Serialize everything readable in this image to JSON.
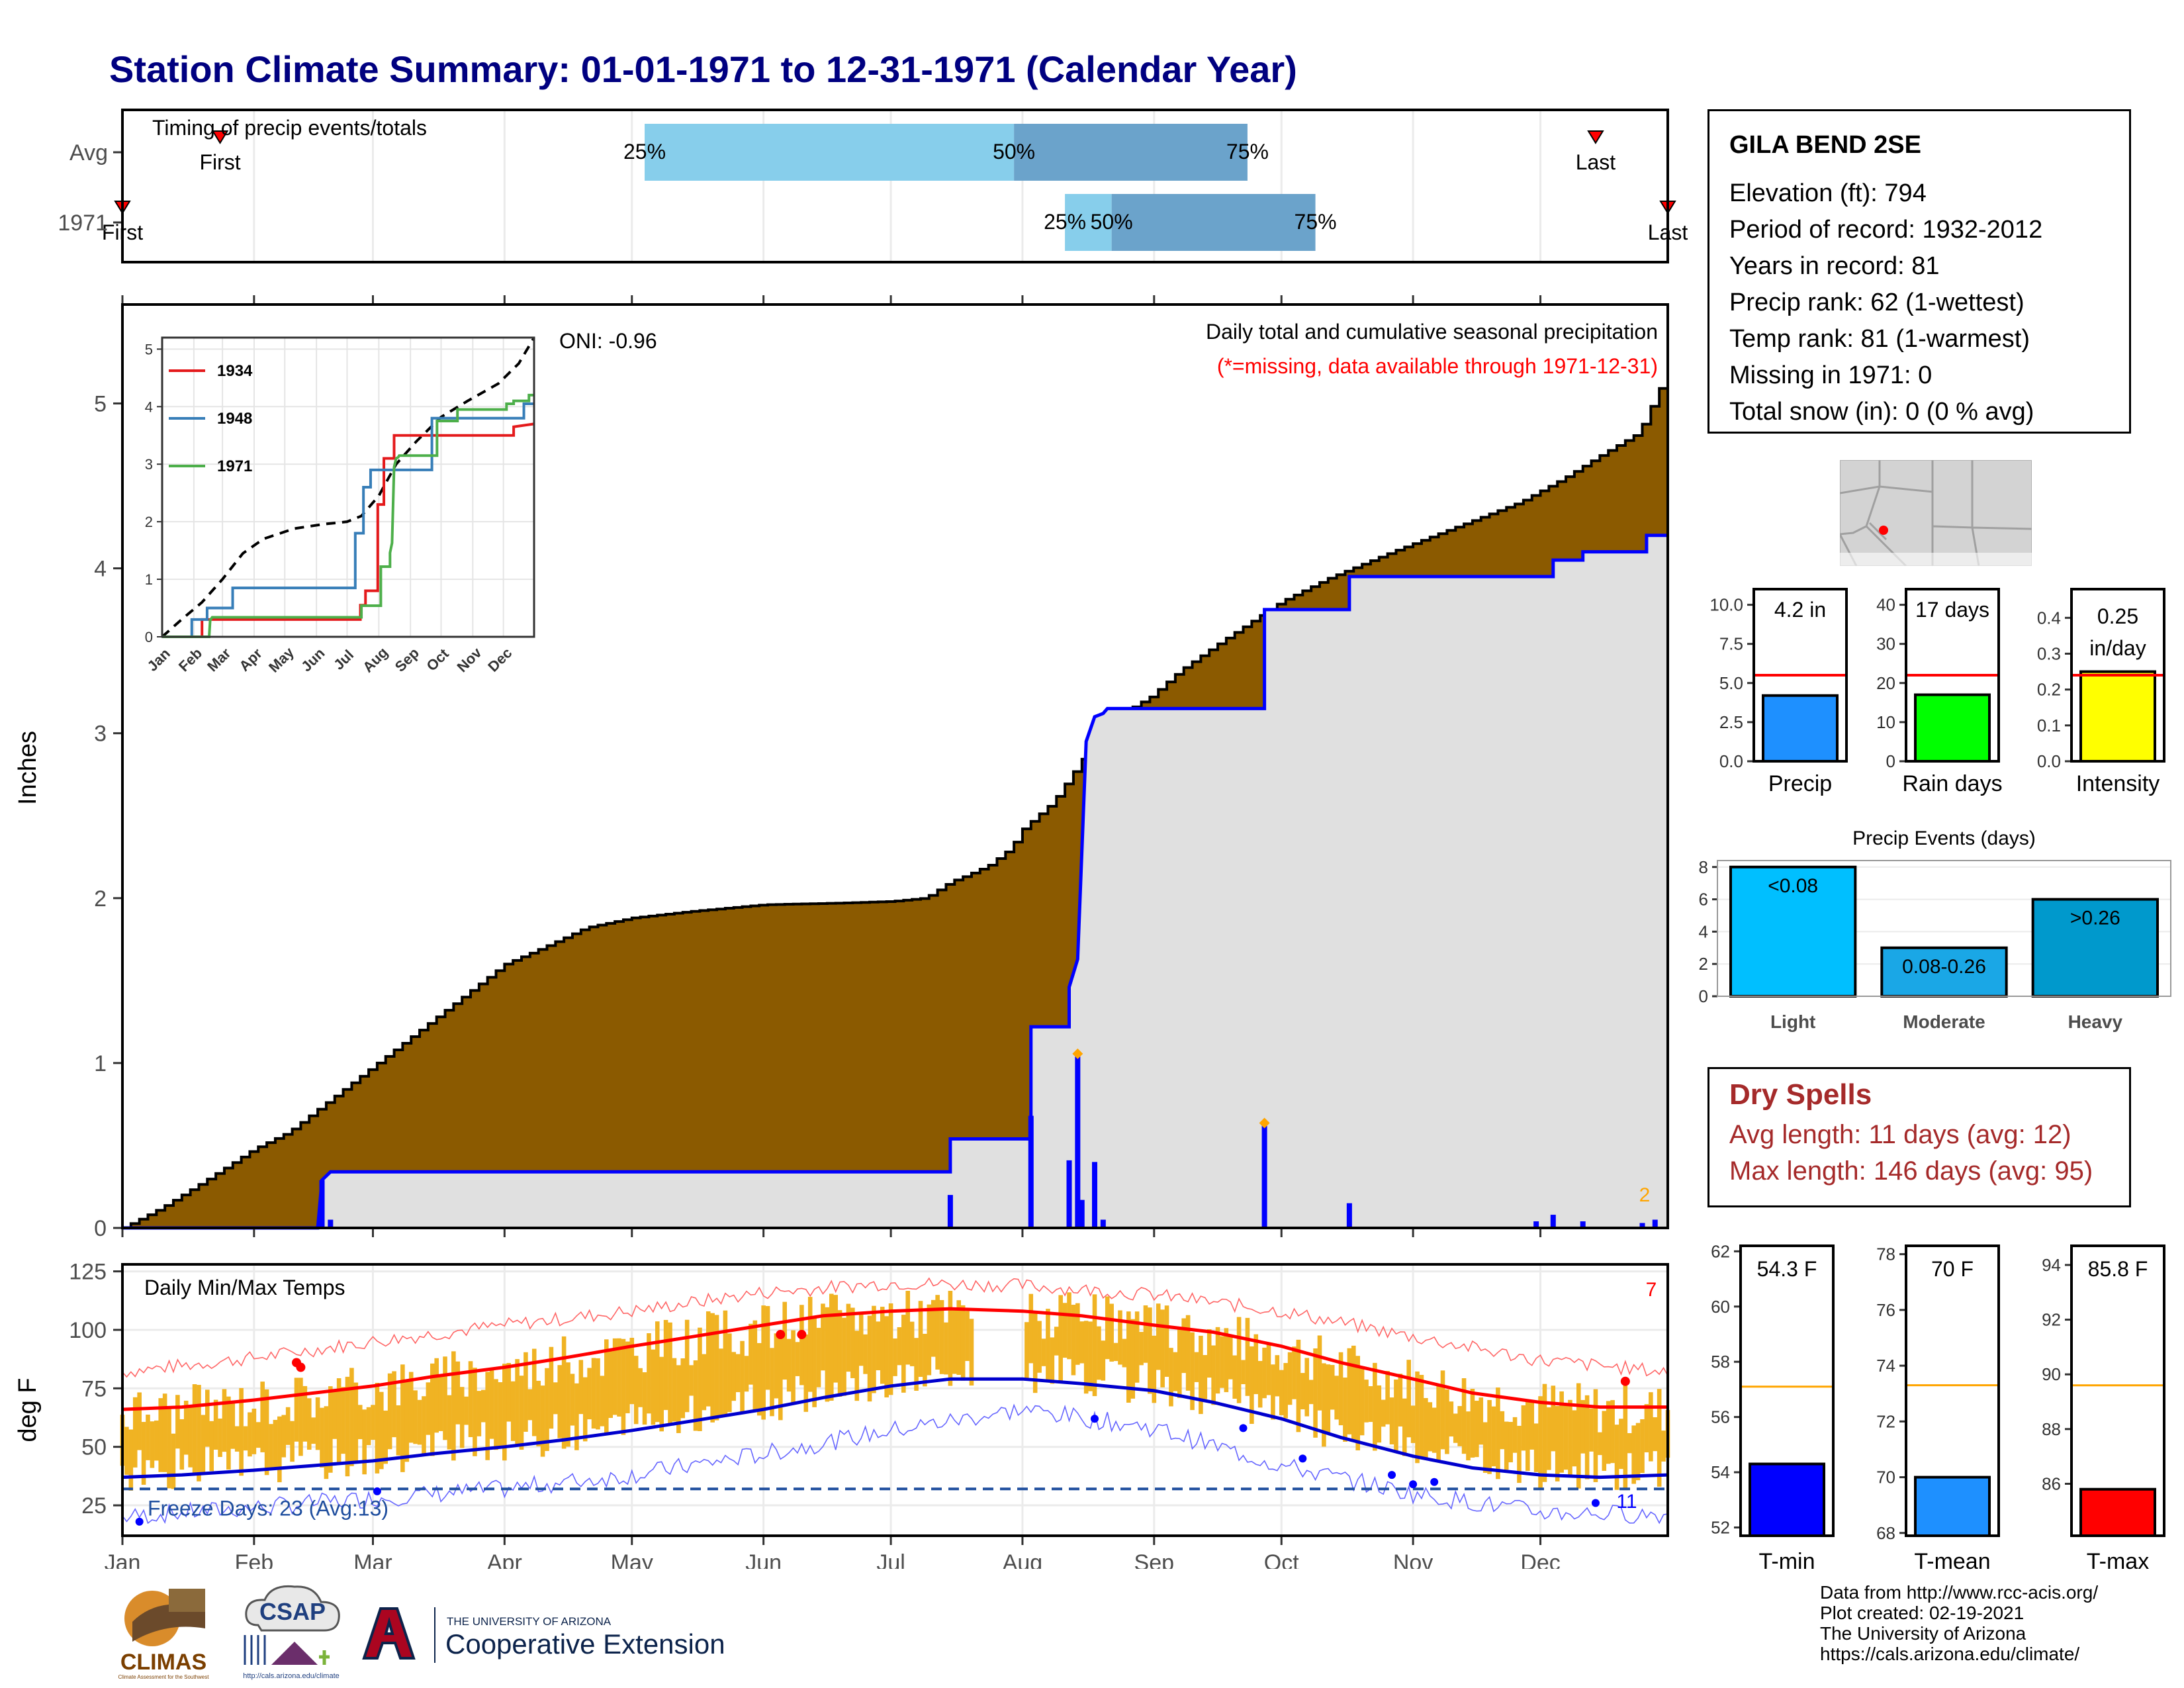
{
  "title": "Station Climate Summary: 01-01-1971 to 12-31-1971 (Calendar Year)",
  "station": {
    "name": "GILA BEND 2SE",
    "lines": [
      "Elevation (ft): 794",
      "Period of record: 1932-2012",
      "Years in record: 81",
      "Precip rank: 62 (1-wettest)",
      "Temp rank: 81 (1-warmest)",
      "Missing in 1971: 0",
      "Total snow (in): 0 (0 % avg)"
    ]
  },
  "dry_spells": {
    "title": "Dry Spells",
    "avg_length": "Avg length: 11 days (avg: 12)",
    "max_length": "Max length: 146 days (avg: 95)"
  },
  "footer": {
    "lines": [
      "Data from http://www.rcc-acis.org/",
      "Plot created: 02-19-2021",
      "The University of Arizona",
      "https://cals.arizona.edu/climate/"
    ]
  },
  "logos": {
    "climas": "CLIMAS",
    "climas_sub": "Climate Assessment for the Southwest",
    "csap": "CSAP",
    "csap_url": "http://cals.arizona.edu/climate",
    "ua_line1": "THE UNIVERSITY OF ARIZONA",
    "ua_line2": "Cooperative Extension"
  },
  "colors": {
    "title": "#000080",
    "precip_fill": "#8B5A00",
    "gray_fill": "#E0E0E0",
    "blue": "#0000FF",
    "timing_light": "#87CEEB",
    "timing_dark": "#6BA3CB",
    "temp_bar": "#F0B323",
    "avg_max": "#FF0000",
    "avg_min": "#0000CD",
    "dry_spell": "#A52A2A"
  },
  "chart_data": [
    {
      "type": "bar",
      "id": "timing",
      "title": "Timing of precip events/totals",
      "categories": [
        "Avg",
        "1971"
      ],
      "x_unit": "day of year",
      "bars": [
        {
          "row": "Avg",
          "p25": 124,
          "p50": 211,
          "p75": 266,
          "first": 24,
          "last": 348
        },
        {
          "row": "1971",
          "p25": 223,
          "p50": 234,
          "p75": 282,
          "first": 1,
          "last": 365
        }
      ],
      "marker_labels": {
        "first": "First",
        "last": "Last"
      },
      "pct_labels": [
        "25%",
        "50%",
        "75%"
      ]
    },
    {
      "type": "area",
      "id": "cumulative-precip",
      "title": "Daily total and cumulative seasonal precipitation",
      "subtitle": "(*=missing, data available through 1971-12-31)",
      "oni": "ONI: -0.96",
      "ylabel": "Inches",
      "ylim": [
        0,
        5.6
      ],
      "yticks": [
        0,
        1,
        2,
        3,
        4,
        5
      ],
      "xlim": [
        1,
        365
      ],
      "months": [
        "Jan",
        "Feb",
        "Mar",
        "Apr",
        "May",
        "Jun",
        "Jul",
        "Aug",
        "Sep",
        "Oct",
        "Nov",
        "Dec"
      ],
      "avg_cumulative": {
        "x": [
          1,
          10,
          20,
          32,
          40,
          50,
          60,
          70,
          80,
          91,
          100,
          110,
          121,
          135,
          152,
          170,
          182,
          190,
          196,
          200,
          205,
          210,
          213,
          220,
          228,
          235,
          243,
          250,
          260,
          274,
          285,
          300,
          310,
          320,
          330,
          340,
          350,
          358,
          365
        ],
        "y": [
          0,
          0.12,
          0.28,
          0.48,
          0.58,
          0.78,
          0.98,
          1.18,
          1.38,
          1.6,
          1.7,
          1.82,
          1.88,
          1.92,
          1.96,
          1.97,
          1.98,
          2.0,
          2.1,
          2.14,
          2.2,
          2.3,
          2.42,
          2.58,
          2.88,
          3.1,
          3.22,
          3.38,
          3.56,
          3.8,
          3.94,
          4.1,
          4.2,
          4.3,
          4.4,
          4.54,
          4.7,
          4.82,
          5.2
        ]
      },
      "observed_cumulative": {
        "x": [
          1,
          47,
          48,
          50,
          196,
          196,
          215,
          215,
          224,
          224,
          226,
          228,
          230,
          232,
          233,
          235,
          270,
          270,
          290,
          290,
          338,
          338,
          345,
          345,
          360,
          360,
          365
        ],
        "y": [
          0,
          0,
          0.29,
          0.34,
          0.34,
          0.54,
          0.54,
          1.22,
          1.22,
          1.46,
          1.63,
          2.95,
          3.1,
          3.12,
          3.15,
          3.15,
          3.15,
          3.75,
          3.75,
          3.95,
          3.95,
          4.05,
          4.05,
          4.1,
          4.1,
          4.2,
          4.2
        ]
      },
      "daily_precip": {
        "x": [
          48,
          50,
          196,
          215,
          224,
          226,
          227,
          230,
          232,
          270,
          290,
          334,
          338,
          345,
          359,
          362
        ],
        "y": [
          0.29,
          0.05,
          0.2,
          0.68,
          0.41,
          1.04,
          0.17,
          0.4,
          0.05,
          0.62,
          0.15,
          0.04,
          0.08,
          0.04,
          0.03,
          0.05
        ]
      },
      "extreme_markers": {
        "x": [
          226,
          270
        ],
        "y": [
          1.04,
          0.62
        ]
      },
      "extreme_count": "2"
    },
    {
      "type": "line",
      "id": "inset-cumulative",
      "xlim": [
        1,
        365
      ],
      "ylim": [
        0,
        5.2
      ],
      "yticks": [
        0,
        1,
        2,
        3,
        4,
        5
      ],
      "months": [
        "Jan",
        "Feb",
        "Mar",
        "Apr",
        "May",
        "Jun",
        "Jul",
        "Aug",
        "Sep",
        "Oct",
        "Nov",
        "Dec"
      ],
      "series": [
        {
          "name": "1934",
          "color": "#E41A1C",
          "x": [
            1,
            40,
            40,
            195,
            195,
            200,
            200,
            212,
            212,
            218,
            218,
            228,
            228,
            345,
            345,
            365
          ],
          "y": [
            0,
            0,
            0.3,
            0.3,
            0.55,
            0.55,
            0.8,
            0.8,
            2.3,
            2.3,
            3.1,
            3.1,
            3.5,
            3.5,
            3.65,
            3.7
          ]
        },
        {
          "name": "1948",
          "color": "#377EB8",
          "x": [
            1,
            30,
            30,
            45,
            45,
            70,
            70,
            190,
            190,
            198,
            198,
            205,
            205,
            265,
            265,
            355,
            355,
            365
          ],
          "y": [
            0,
            0,
            0.3,
            0.3,
            0.5,
            0.5,
            0.85,
            0.85,
            1.8,
            1.8,
            2.6,
            2.6,
            2.9,
            2.9,
            3.8,
            3.8,
            4.05,
            4.05
          ]
        },
        {
          "name": "1971",
          "color": "#4DAF4A",
          "x": [
            1,
            47,
            48,
            50,
            196,
            196,
            215,
            215,
            224,
            224,
            226,
            228,
            230,
            232,
            233,
            235,
            270,
            270,
            290,
            290,
            338,
            338,
            345,
            345,
            360,
            360,
            365
          ],
          "y": [
            0,
            0,
            0.29,
            0.34,
            0.34,
            0.54,
            0.54,
            1.22,
            1.22,
            1.46,
            1.63,
            2.95,
            3.1,
            3.12,
            3.15,
            3.15,
            3.15,
            3.75,
            3.75,
            3.95,
            3.95,
            4.05,
            4.05,
            4.1,
            4.1,
            4.2,
            4.2
          ]
        }
      ],
      "avg_dashed": {
        "x": [
          1,
          20,
          40,
          60,
          80,
          100,
          130,
          160,
          182,
          196,
          213,
          230,
          250,
          274,
          300,
          330,
          350,
          365
        ],
        "y": [
          0,
          0.3,
          0.6,
          1.0,
          1.45,
          1.7,
          1.88,
          1.96,
          2.0,
          2.1,
          2.45,
          3.0,
          3.4,
          3.82,
          4.1,
          4.4,
          4.75,
          5.2
        ]
      }
    },
    {
      "type": "line",
      "id": "daily-temps",
      "title": "Daily Min/Max Temps",
      "ylabel": "deg F",
      "ylim": [
        12,
        128
      ],
      "yticks": [
        25,
        50,
        75,
        100,
        125
      ],
      "months": [
        "Jan",
        "Feb",
        "Mar",
        "Apr",
        "May",
        "Jun",
        "Jul",
        "Aug",
        "Sep",
        "Oct",
        "Nov",
        "Dec"
      ],
      "avg_max": {
        "x": [
          1,
          15,
          32,
          46,
          60,
          74,
          91,
          105,
          121,
          135,
          152,
          166,
          182,
          196,
          213,
          227,
          244,
          258,
          274,
          288,
          305,
          319,
          335,
          349,
          365
        ],
        "y": [
          66,
          67,
          70,
          73,
          76,
          80,
          84,
          88,
          93,
          97,
          102,
          106,
          108,
          109,
          108,
          106,
          102,
          99,
          93,
          86,
          79,
          73,
          69,
          67,
          67
        ]
      },
      "avg_min": {
        "x": [
          1,
          15,
          32,
          46,
          60,
          74,
          91,
          105,
          121,
          135,
          152,
          166,
          182,
          196,
          213,
          227,
          244,
          258,
          274,
          288,
          305,
          319,
          335,
          349,
          365
        ],
        "y": [
          37,
          38,
          40,
          42,
          44,
          47,
          50,
          53,
          57,
          61,
          66,
          71,
          76,
          79,
          79,
          77,
          74,
          69,
          62,
          54,
          46,
          41,
          38,
          37,
          38
        ]
      },
      "record_max": {
        "x": [
          1,
          32,
          60,
          91,
          121,
          152,
          182,
          213,
          244,
          274,
          305,
          335,
          365
        ],
        "y": [
          82,
          88,
          95,
          102,
          108,
          116,
          120,
          119,
          115,
          108,
          97,
          87,
          82
        ]
      },
      "record_min": {
        "x": [
          1,
          32,
          60,
          91,
          121,
          152,
          182,
          213,
          244,
          274,
          305,
          335,
          365
        ],
        "y": [
          20,
          24,
          28,
          32,
          38,
          47,
          57,
          66,
          58,
          42,
          30,
          22,
          21
        ]
      },
      "freeze_line": 32,
      "freeze_label": "Freeze Days: 23 (Avg:13)",
      "record_highs_count": "7",
      "record_lows_count": "11"
    },
    {
      "type": "bar",
      "id": "precip-summary",
      "categories": [
        "Precip"
      ],
      "values": [
        4.2
      ],
      "avg": 5.5,
      "label": "4.2 in",
      "ylim": [
        0,
        11
      ],
      "yticks": [
        "0.0",
        "2.5",
        "5.0",
        "7.5",
        "10.0"
      ],
      "color": "#1E90FF"
    },
    {
      "type": "bar",
      "id": "raindays-summary",
      "categories": [
        "Rain days"
      ],
      "values": [
        17
      ],
      "avg": 22,
      "label": "17 days",
      "ylim": [
        0,
        44
      ],
      "yticks": [
        "0",
        "10",
        "20",
        "30",
        "40"
      ],
      "color": "#00FF00"
    },
    {
      "type": "bar",
      "id": "intensity-summary",
      "categories": [
        "Intensity"
      ],
      "values": [
        0.25
      ],
      "avg": 0.24,
      "label": "0.25",
      "label2": "in/day",
      "ylim": [
        0,
        0.48
      ],
      "yticks": [
        "0.0",
        "0.1",
        "0.2",
        "0.3",
        "0.4"
      ],
      "color": "#FFFF00"
    },
    {
      "type": "bar",
      "id": "precip-events",
      "title": "Precip Events (days)",
      "categories": [
        "Light",
        "Moderate",
        "Heavy"
      ],
      "values": [
        8,
        3,
        6
      ],
      "bar_labels": [
        "<0.08",
        "0.08-0.26",
        ">0.26"
      ],
      "colors": [
        "#00BFFF",
        "#1AA7E6",
        "#0099CC"
      ],
      "ylim": [
        0,
        8.4
      ],
      "yticks": [
        "0",
        "2",
        "4",
        "6",
        "8"
      ]
    },
    {
      "type": "bar",
      "id": "tmin-summary",
      "categories": [
        "T-min"
      ],
      "values": [
        54.3
      ],
      "avg": 57.1,
      "label": "54.3 F",
      "ylim": [
        51.7,
        62.2
      ],
      "yticks": [
        "52",
        "54",
        "56",
        "58",
        "60",
        "62"
      ],
      "color": "#0000FF"
    },
    {
      "type": "bar",
      "id": "tmean-summary",
      "categories": [
        "T-mean"
      ],
      "values": [
        70
      ],
      "avg": 73.3,
      "label": "70 F",
      "ylim": [
        67.9,
        78.3
      ],
      "yticks": [
        "68",
        "70",
        "72",
        "74",
        "76",
        "78"
      ],
      "color": "#1E90FF"
    },
    {
      "type": "bar",
      "id": "tmax-summary",
      "categories": [
        "T-max"
      ],
      "values": [
        85.8
      ],
      "avg": 89.6,
      "label": "85.8 F",
      "ylim": [
        84.1,
        94.7
      ],
      "yticks": [
        "86",
        "88",
        "90",
        "92",
        "94"
      ],
      "color": "#FF0000"
    }
  ]
}
